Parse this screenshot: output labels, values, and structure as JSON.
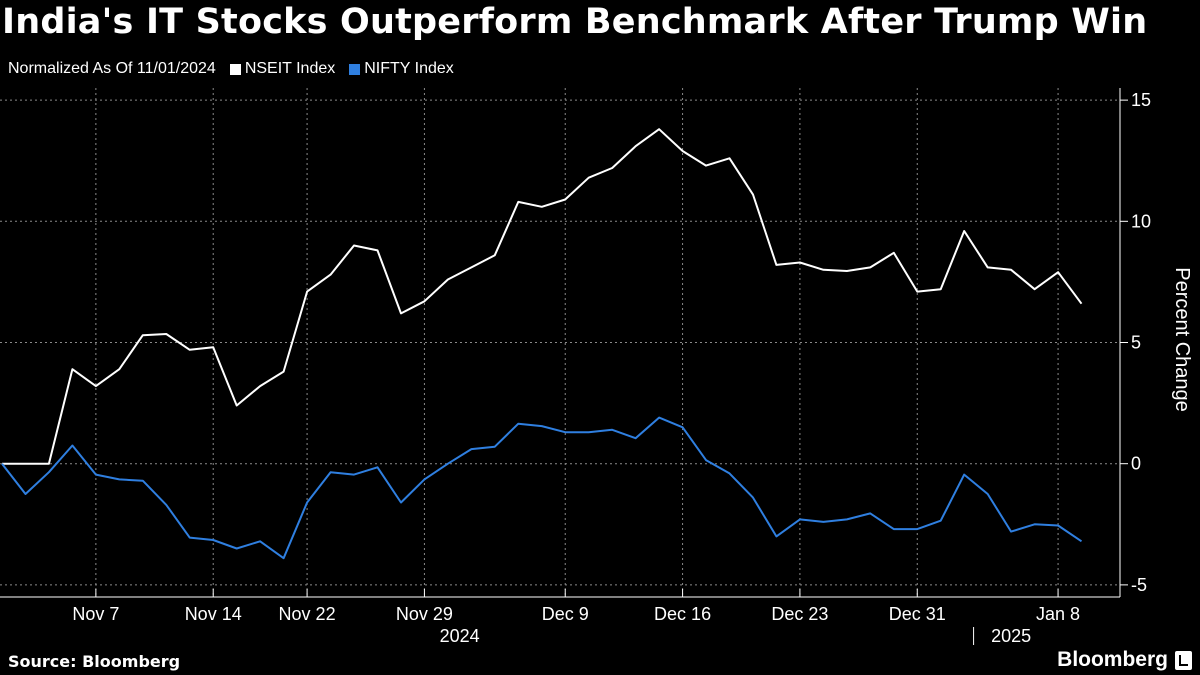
{
  "title": "India's IT Stocks Outperform Benchmark After Trump Win",
  "legend": {
    "note": "Normalized As Of 11/01/2024",
    "items": [
      {
        "name": "NSEIT Index",
        "color": "#ffffff"
      },
      {
        "name": "NIFTY Index",
        "color": "#2f7fe0"
      }
    ]
  },
  "source": "Source: Bloomberg",
  "brand": "Bloomberg",
  "chart_data": {
    "type": "line",
    "ylabel": "Percent Change",
    "ylim": [
      -5.5,
      15.5
    ],
    "yticks": [
      15,
      10,
      5,
      0,
      -5
    ],
    "x_index_range": [
      0,
      47
    ],
    "xtick_labels": [
      {
        "label": "Nov 7",
        "index": 4
      },
      {
        "label": "Nov 14",
        "index": 9
      },
      {
        "label": "Nov 22",
        "index": 13
      },
      {
        "label": "Nov 29",
        "index": 18
      },
      {
        "label": "Dec 9",
        "index": 24
      },
      {
        "label": "Dec 16",
        "index": 29
      },
      {
        "label": "Dec 23",
        "index": 34
      },
      {
        "label": "Dec 31",
        "index": 39
      },
      {
        "label": "Jan 8",
        "index": 45
      }
    ],
    "year_labels": [
      {
        "label": "2024",
        "index": 19.5
      },
      {
        "label": "2025",
        "index": 43
      }
    ],
    "series": [
      {
        "name": "NSEIT Index",
        "color": "#ffffff",
        "values": [
          0,
          0,
          0,
          3.9,
          3.2,
          3.9,
          5.3,
          5.35,
          4.7,
          4.8,
          2.4,
          3.2,
          3.8,
          7.1,
          7.8,
          9.0,
          8.8,
          6.2,
          6.7,
          7.6,
          8.1,
          8.6,
          10.8,
          10.6,
          10.9,
          11.8,
          12.2,
          13.1,
          13.8,
          12.9,
          12.3,
          12.6,
          11.1,
          8.2,
          8.3,
          8.0,
          7.95,
          8.1,
          8.7,
          7.1,
          7.2,
          9.6,
          8.1,
          8.0,
          7.2,
          7.9,
          6.6
        ]
      },
      {
        "name": "NIFTY Index",
        "color": "#2f7fe0",
        "values": [
          0,
          -1.25,
          -0.35,
          0.75,
          -0.45,
          -0.65,
          -0.7,
          -1.7,
          -3.05,
          -3.15,
          -3.5,
          -3.2,
          -3.9,
          -1.6,
          -0.35,
          -0.45,
          -0.15,
          -1.6,
          -0.65,
          0,
          0.6,
          0.7,
          1.65,
          1.55,
          1.3,
          1.3,
          1.4,
          1.05,
          1.9,
          1.5,
          0.15,
          -0.4,
          -1.4,
          -3.0,
          -2.3,
          -2.4,
          -2.3,
          -2.05,
          -2.7,
          -2.7,
          -2.35,
          -0.45,
          -1.25,
          -2.8,
          -2.5,
          -2.55,
          -3.2
        ]
      }
    ]
  }
}
